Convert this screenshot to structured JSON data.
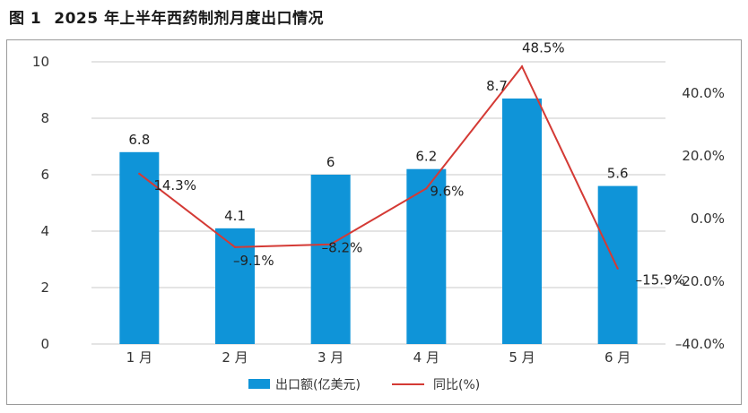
{
  "figure": {
    "number": "图 1",
    "title": "2025 年上半年西药制剂月度出口情况"
  },
  "colors": {
    "bar": "#0f94d8",
    "line": "#d43a35",
    "grid": "#c8c8c8"
  },
  "chart_data": {
    "type": "bar",
    "title": "2025 年上半年西药制剂月度出口情况",
    "categories": [
      "1 月",
      "2 月",
      "3 月",
      "4 月",
      "5 月",
      "6 月"
    ],
    "series": [
      {
        "name": "出口额(亿美元)",
        "type": "bar",
        "axis": "left",
        "values": [
          6.8,
          4.1,
          6,
          6.2,
          8.7,
          5.6
        ],
        "labels": [
          "6.8",
          "4.1",
          "6",
          "6.2",
          "8.7",
          "5.6"
        ]
      },
      {
        "name": "同比(%)",
        "type": "line",
        "axis": "right",
        "values": [
          14.3,
          -9.1,
          -8.2,
          9.6,
          48.5,
          -15.9
        ],
        "labels": [
          "14.3%",
          "–9.1%",
          "–8.2%",
          "9.6%",
          "48.5%",
          "–15.9%"
        ]
      }
    ],
    "y_left": {
      "min": 0,
      "max": 10,
      "step": 2,
      "ticks": [
        "0",
        "2",
        "4",
        "6",
        "8",
        "10"
      ]
    },
    "y_right": {
      "min": -40,
      "max": 50,
      "ticks": [
        "–40.0%",
        "–20.0%",
        "0.0%",
        "20.0%",
        "40.0%"
      ],
      "tick_values": [
        -40,
        -20,
        0,
        20,
        40
      ]
    },
    "legend": {
      "position": "bottom-center",
      "items": [
        "出口额(亿美元)",
        "同比(%)"
      ]
    },
    "grid": true
  }
}
